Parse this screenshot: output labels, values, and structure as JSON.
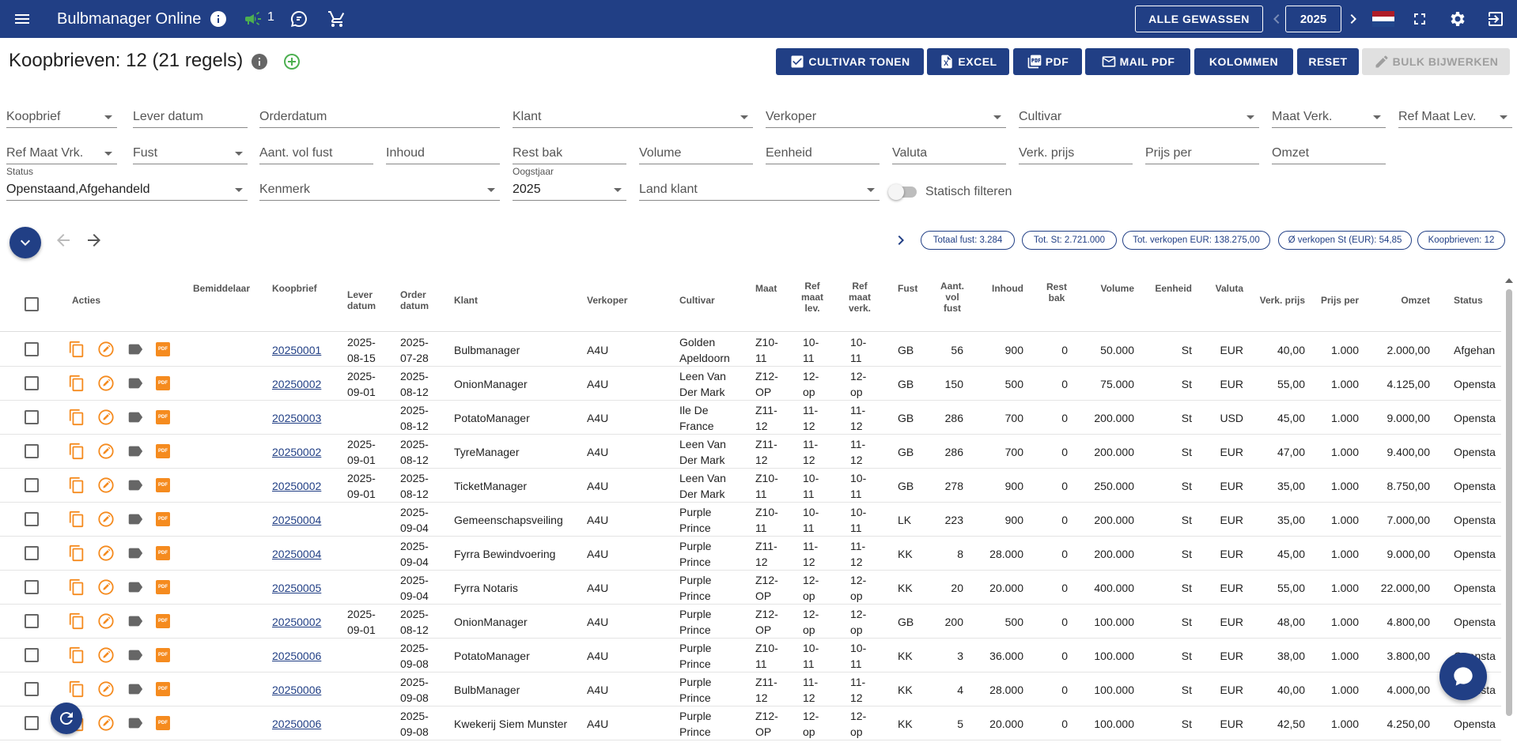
{
  "app": {
    "title": "Bulbmanager Online",
    "notification_count": "1",
    "all_crops_label": "ALLE GEWASSEN",
    "year": "2025"
  },
  "page": {
    "title": "Koopbrieven: 12 (21 regels)"
  },
  "actions": {
    "cultivar": "CULTIVAR TONEN",
    "excel": "EXCEL",
    "pdf": "PDF",
    "mail_pdf": "MAIL PDF",
    "columns": "KOLOMMEN",
    "reset": "RESET",
    "bulk": "BULK BIJWERKEN"
  },
  "filters": {
    "koopbrief": "Koopbrief",
    "lever_datum": "Lever datum",
    "orderdatum": "Orderdatum",
    "klant": "Klant",
    "verkoper": "Verkoper",
    "cultivar": "Cultivar",
    "maat_verk": "Maat Verk.",
    "ref_maat_lev": "Ref Maat Lev.",
    "ref_maat_vrk": "Ref Maat Vrk.",
    "fust": "Fust",
    "aant_vol_fust": "Aant. vol fust",
    "inhoud": "Inhoud",
    "rest_bak": "Rest bak",
    "volume": "Volume",
    "eenheid": "Eenheid",
    "valuta": "Valuta",
    "verk_prijs": "Verk. prijs",
    "prijs_per": "Prijs per",
    "omzet": "Omzet",
    "status_label": "Status",
    "status_value": "Openstaand,Afgehandeld",
    "kenmerk": "Kenmerk",
    "oogstjaar_label": "Oogstjaar",
    "oogstjaar_value": "2025",
    "land_klant": "Land klant",
    "statisch": "Statisch filteren"
  },
  "summary": {
    "totaal_fust": "Totaal fust: 3.284",
    "tot_st": "Tot. St: 2.721.000",
    "tot_verkopen": "Tot. verkopen EUR: 138.275,00",
    "avg_verkopen": "Ø verkopen St (EUR): 54,85",
    "koopbrieven": "Koopbrieven: 12"
  },
  "table": {
    "headers": {
      "acties": "Acties",
      "bemiddelaar": "Bemiddelaar",
      "koopbrief": "Koopbrief",
      "lever_datum": "Lever datum",
      "order_datum": "Order datum",
      "klant": "Klant",
      "verkoper": "Verkoper",
      "cultivar": "Cultivar",
      "maat": "Maat",
      "ref_maat_lev": "Ref maat lev.",
      "ref_maat_verk": "Ref maat verk.",
      "fust": "Fust",
      "aant_vol_fust": "Aant. vol fust",
      "inhoud": "Inhoud",
      "rest_bak": "Rest bak",
      "volume": "Volume",
      "eenheid": "Eenheid",
      "valuta": "Valuta",
      "verk_prijs": "Verk. prijs",
      "prijs_per": "Prijs per",
      "omzet": "Omzet",
      "status": "Status"
    },
    "rows": [
      {
        "koopbrief": "20250001",
        "lever": "2025-08-15",
        "order": "2025-07-28",
        "klant": "Bulbmanager",
        "verkoper": "A4U",
        "cultivar": "Golden Apeldoorn",
        "maat": "Z10-11",
        "ref_lev": "10-11",
        "ref_verk": "10-11",
        "fust": "GB",
        "aant": "56",
        "inhoud": "900",
        "rest": "0",
        "volume": "50.000",
        "eenheid": "St",
        "valuta": "EUR",
        "prijs": "40,00",
        "per": "1.000",
        "omzet": "2.000,00",
        "status": "Afgehan"
      },
      {
        "koopbrief": "20250002",
        "lever": "2025-09-01",
        "order": "2025-08-12",
        "klant": "OnionManager",
        "verkoper": "A4U",
        "cultivar": "Leen Van Der Mark",
        "maat": "Z12-OP",
        "ref_lev": "12-op",
        "ref_verk": "12-op",
        "fust": "GB",
        "aant": "150",
        "inhoud": "500",
        "rest": "0",
        "volume": "75.000",
        "eenheid": "St",
        "valuta": "EUR",
        "prijs": "55,00",
        "per": "1.000",
        "omzet": "4.125,00",
        "status": "Opensta"
      },
      {
        "koopbrief": "20250003",
        "lever": "",
        "order": "2025-08-12",
        "klant": "PotatoManager",
        "verkoper": "A4U",
        "cultivar": "Ile De France",
        "maat": "Z11-12",
        "ref_lev": "11-12",
        "ref_verk": "11-12",
        "fust": "GB",
        "aant": "286",
        "inhoud": "700",
        "rest": "0",
        "volume": "200.000",
        "eenheid": "St",
        "valuta": "USD",
        "prijs": "45,00",
        "per": "1.000",
        "omzet": "9.000,00",
        "status": "Opensta"
      },
      {
        "koopbrief": "20250002",
        "lever": "2025-09-01",
        "order": "2025-08-12",
        "klant": "TyreManager",
        "verkoper": "A4U",
        "cultivar": "Leen Van Der Mark",
        "maat": "Z11-12",
        "ref_lev": "11-12",
        "ref_verk": "11-12",
        "fust": "GB",
        "aant": "286",
        "inhoud": "700",
        "rest": "0",
        "volume": "200.000",
        "eenheid": "St",
        "valuta": "EUR",
        "prijs": "47,00",
        "per": "1.000",
        "omzet": "9.400,00",
        "status": "Opensta"
      },
      {
        "koopbrief": "20250002",
        "lever": "2025-09-01",
        "order": "2025-08-12",
        "klant": "TicketManager",
        "verkoper": "A4U",
        "cultivar": "Leen Van Der Mark",
        "maat": "Z10-11",
        "ref_lev": "10-11",
        "ref_verk": "10-11",
        "fust": "GB",
        "aant": "278",
        "inhoud": "900",
        "rest": "0",
        "volume": "250.000",
        "eenheid": "St",
        "valuta": "EUR",
        "prijs": "35,00",
        "per": "1.000",
        "omzet": "8.750,00",
        "status": "Opensta"
      },
      {
        "koopbrief": "20250004",
        "lever": "",
        "order": "2025-09-04",
        "klant": "Gemeenschapsveiling",
        "verkoper": "A4U",
        "cultivar": "Purple Prince",
        "maat": "Z10-11",
        "ref_lev": "10-11",
        "ref_verk": "10-11",
        "fust": "LK",
        "aant": "223",
        "inhoud": "900",
        "rest": "0",
        "volume": "200.000",
        "eenheid": "St",
        "valuta": "EUR",
        "prijs": "35,00",
        "per": "1.000",
        "omzet": "7.000,00",
        "status": "Opensta"
      },
      {
        "koopbrief": "20250004",
        "lever": "",
        "order": "2025-09-04",
        "klant": "Fyrra Bewindvoering",
        "verkoper": "A4U",
        "cultivar": "Purple Prince",
        "maat": "Z11-12",
        "ref_lev": "11-12",
        "ref_verk": "11-12",
        "fust": "KK",
        "aant": "8",
        "inhoud": "28.000",
        "rest": "0",
        "volume": "200.000",
        "eenheid": "St",
        "valuta": "EUR",
        "prijs": "45,00",
        "per": "1.000",
        "omzet": "9.000,00",
        "status": "Opensta"
      },
      {
        "koopbrief": "20250005",
        "lever": "",
        "order": "2025-09-04",
        "klant": "Fyrra Notaris",
        "verkoper": "A4U",
        "cultivar": "Purple Prince",
        "maat": "Z12-OP",
        "ref_lev": "12-op",
        "ref_verk": "12-op",
        "fust": "KK",
        "aant": "20",
        "inhoud": "20.000",
        "rest": "0",
        "volume": "400.000",
        "eenheid": "St",
        "valuta": "EUR",
        "prijs": "55,00",
        "per": "1.000",
        "omzet": "22.000,00",
        "status": "Opensta"
      },
      {
        "koopbrief": "20250002",
        "lever": "2025-09-01",
        "order": "2025-08-12",
        "klant": "OnionManager",
        "verkoper": "A4U",
        "cultivar": "Purple Prince",
        "maat": "Z12-OP",
        "ref_lev": "12-op",
        "ref_verk": "12-op",
        "fust": "GB",
        "aant": "200",
        "inhoud": "500",
        "rest": "0",
        "volume": "100.000",
        "eenheid": "St",
        "valuta": "EUR",
        "prijs": "48,00",
        "per": "1.000",
        "omzet": "4.800,00",
        "status": "Opensta"
      },
      {
        "koopbrief": "20250006",
        "lever": "",
        "order": "2025-09-08",
        "klant": "PotatoManager",
        "verkoper": "A4U",
        "cultivar": "Purple Prince",
        "maat": "Z10-11",
        "ref_lev": "10-11",
        "ref_verk": "10-11",
        "fust": "KK",
        "aant": "3",
        "inhoud": "36.000",
        "rest": "0",
        "volume": "100.000",
        "eenheid": "St",
        "valuta": "EUR",
        "prijs": "38,00",
        "per": "1.000",
        "omzet": "3.800,00",
        "status": "Opensta"
      },
      {
        "koopbrief": "20250006",
        "lever": "",
        "order": "2025-09-08",
        "klant": "BulbManager",
        "verkoper": "A4U",
        "cultivar": "Purple Prince",
        "maat": "Z11-12",
        "ref_lev": "11-12",
        "ref_verk": "11-12",
        "fust": "KK",
        "aant": "4",
        "inhoud": "28.000",
        "rest": "0",
        "volume": "100.000",
        "eenheid": "St",
        "valuta": "EUR",
        "prijs": "40,00",
        "per": "1.000",
        "omzet": "4.000,00",
        "status": "Opensta"
      },
      {
        "koopbrief": "20250006",
        "lever": "",
        "order": "2025-09-08",
        "klant": "Kwekerij Siem Munster",
        "verkoper": "A4U",
        "cultivar": "Purple Prince",
        "maat": "Z12-OP",
        "ref_lev": "12-op",
        "ref_verk": "12-op",
        "fust": "KK",
        "aant": "5",
        "inhoud": "20.000",
        "rest": "0",
        "volume": "100.000",
        "eenheid": "St",
        "valuta": "EUR",
        "prijs": "42,50",
        "per": "1.000",
        "omzet": "4.250,00",
        "status": "Opensta"
      }
    ]
  },
  "colors": {
    "primary": "#213f85",
    "accent_orange": "#f58b1f",
    "success_green": "#4caf50"
  }
}
